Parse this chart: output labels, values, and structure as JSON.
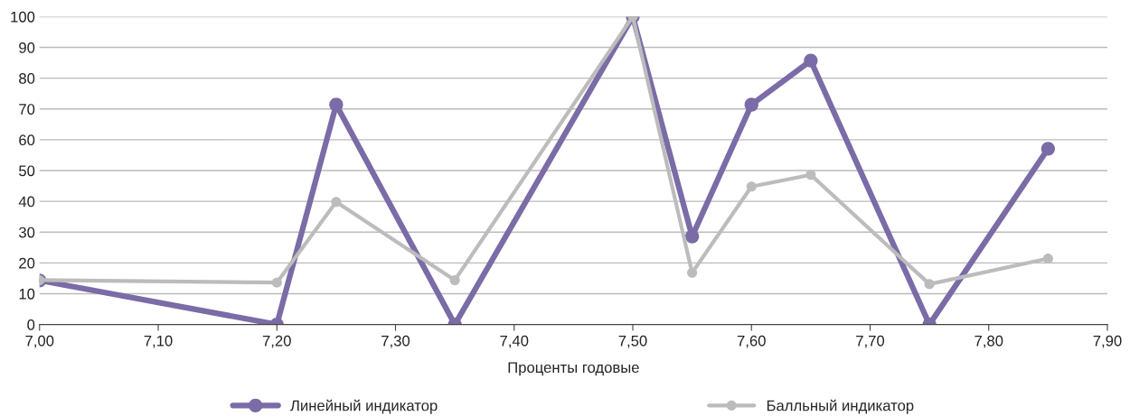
{
  "chart_data": {
    "type": "line",
    "xlabel": "Проценты годовые",
    "x": [
      7.0,
      7.2,
      7.25,
      7.35,
      7.5,
      7.55,
      7.6,
      7.65,
      7.75,
      7.85
    ],
    "series": [
      {
        "name": "Линейный индикатор",
        "color": "#7b6ba6",
        "values": [
          14.3,
          0,
          71.4,
          0,
          100,
          28.6,
          71.4,
          85.7,
          0,
          57.1
        ]
      },
      {
        "name": "Балльный индикатор",
        "color": "#bcbcbc",
        "values": [
          14.4,
          13.6,
          39.8,
          14.4,
          100,
          16.8,
          44.8,
          48.6,
          13.1,
          21.4
        ]
      }
    ],
    "xlim": [
      7.0,
      7.9
    ],
    "xticks": [
      {
        "value": 7.0,
        "label": "7,00"
      },
      {
        "value": 7.1,
        "label": "7,10"
      },
      {
        "value": 7.2,
        "label": "7,20"
      },
      {
        "value": 7.3,
        "label": "7,30"
      },
      {
        "value": 7.4,
        "label": "7,40"
      },
      {
        "value": 7.5,
        "label": "7,50"
      },
      {
        "value": 7.6,
        "label": "7,60"
      },
      {
        "value": 7.7,
        "label": "7,70"
      },
      {
        "value": 7.8,
        "label": "7,80"
      },
      {
        "value": 7.9,
        "label": "7,90"
      }
    ],
    "ylim": [
      0,
      100
    ],
    "yticks": [
      0,
      10,
      20,
      30,
      40,
      50,
      60,
      70,
      80,
      90,
      100
    ],
    "grid": "y",
    "legend": "bottom",
    "marker": "circle",
    "line_style": "solid"
  }
}
